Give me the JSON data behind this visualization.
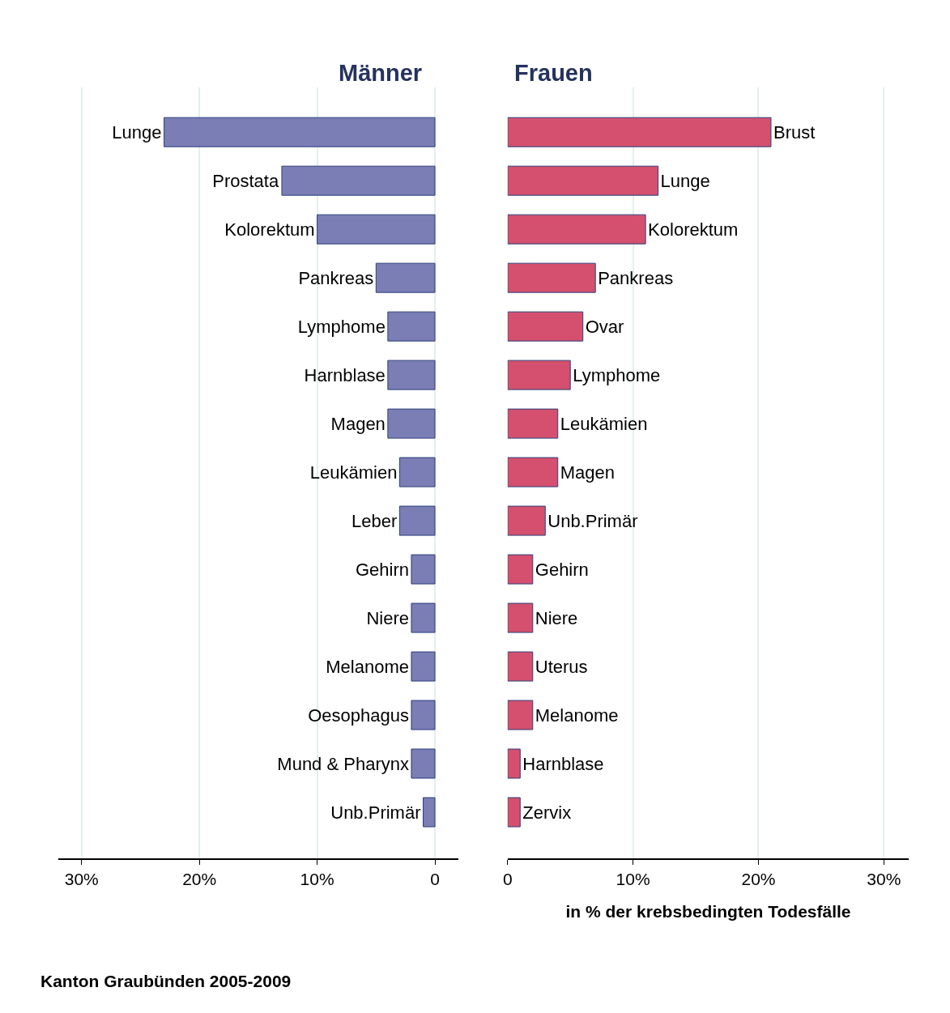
{
  "chart_data": [
    {
      "type": "bar",
      "orientation": "horizontal",
      "title": "Männer",
      "categories": [
        "Lunge",
        "Prostata",
        "Kolorektum",
        "Pankreas",
        "Lymphome",
        "Harnblase",
        "Magen",
        "Leukämien",
        "Leber",
        "Gehirn",
        "Niere",
        "Melanome",
        "Oesophagus",
        "Mund & Pharynx",
        "Unb.Primär"
      ],
      "values": [
        23,
        13,
        10,
        5,
        4,
        4,
        4,
        3,
        3,
        2,
        2,
        2,
        2,
        2,
        1
      ],
      "color": "#7b7db5",
      "xlim": [
        32,
        -2
      ],
      "xticks": [
        {
          "value": 30,
          "label": "30%"
        },
        {
          "value": 20,
          "label": "20%"
        },
        {
          "value": 10,
          "label": "10%"
        },
        0
      ],
      "grid": "x",
      "tick_labels": "x",
      "annotations": [
        "Kanton Graubünden 2005-2009"
      ]
    },
    {
      "type": "bar",
      "orientation": "horizontal",
      "title": "Frauen",
      "xlabel": "in % der krebsbedingten Todesfälle",
      "categories": [
        "Brust",
        "Lunge",
        "Kolorektum",
        "Pankreas",
        "Ovar",
        "Lymphome",
        "Leukämien",
        "Magen",
        "Unb.Primär",
        "Gehirn",
        "Niere",
        "Uterus",
        "Melanome",
        "Harnblase",
        "Zervix"
      ],
      "values": [
        21,
        12,
        11,
        7,
        6,
        5,
        4,
        4,
        3,
        2,
        2,
        2,
        2,
        1,
        1
      ],
      "color": "#d4506e",
      "xlim": [
        0,
        32
      ],
      "xticks": [
        0,
        {
          "value": 10,
          "label": "10%"
        },
        {
          "value": 20,
          "label": "20%"
        },
        {
          "value": 30,
          "label": "30%"
        }
      ],
      "grid": "x",
      "tick_labels": "x"
    }
  ]
}
